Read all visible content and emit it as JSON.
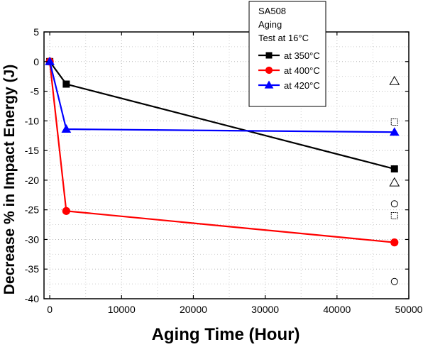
{
  "chart_data": {
    "type": "line",
    "xlabel": "Aging Time (Hour)",
    "ylabel": "Decrease % in Impact Energy (J)",
    "xlim": [
      -800,
      50000
    ],
    "ylim": [
      -40,
      5
    ],
    "x_ticks": [
      0,
      10000,
      20000,
      30000,
      40000,
      50000
    ],
    "y_ticks": [
      5,
      0,
      -5,
      -10,
      -15,
      -20,
      -25,
      -30,
      -35,
      -40
    ],
    "x_tick_labels": [
      "0",
      "10000",
      "20000",
      "30000",
      "40000",
      "50000"
    ],
    "y_tick_labels": [
      "5",
      "0",
      "-5",
      "-10",
      "-15",
      "-20",
      "-25",
      "-30",
      "-35",
      "-40"
    ],
    "grid": true,
    "legend": {
      "placement": "top-right",
      "header": [
        "SA508",
        "Aging",
        "Test at 16°C"
      ]
    },
    "series": [
      {
        "name": "at 350°C",
        "color": "#000000",
        "marker": "square",
        "x": [
          0,
          2300,
          48000
        ],
        "y": [
          0,
          -3.8,
          -18.1
        ]
      },
      {
        "name": "at 400°C",
        "color": "#ff0000",
        "marker": "circle",
        "x": [
          0,
          2300,
          48000
        ],
        "y": [
          0,
          -25.2,
          -30.5
        ]
      },
      {
        "name": "at 420°C",
        "color": "#0000ff",
        "marker": "triangle",
        "x": [
          0,
          2300,
          48000
        ],
        "y": [
          0,
          -11.4,
          -11.9
        ]
      }
    ],
    "extra_markers": [
      {
        "marker": "open-triangle",
        "x": 48000,
        "y": -3.3
      },
      {
        "marker": "dotted-square",
        "x": 48000,
        "y": -10.2
      },
      {
        "marker": "open-triangle",
        "x": 48000,
        "y": -20.4
      },
      {
        "marker": "open-circle",
        "x": 48000,
        "y": -24.0
      },
      {
        "marker": "dotted-square",
        "x": 48000,
        "y": -26.0
      },
      {
        "marker": "open-circle",
        "x": 48000,
        "y": -37.1
      }
    ]
  }
}
